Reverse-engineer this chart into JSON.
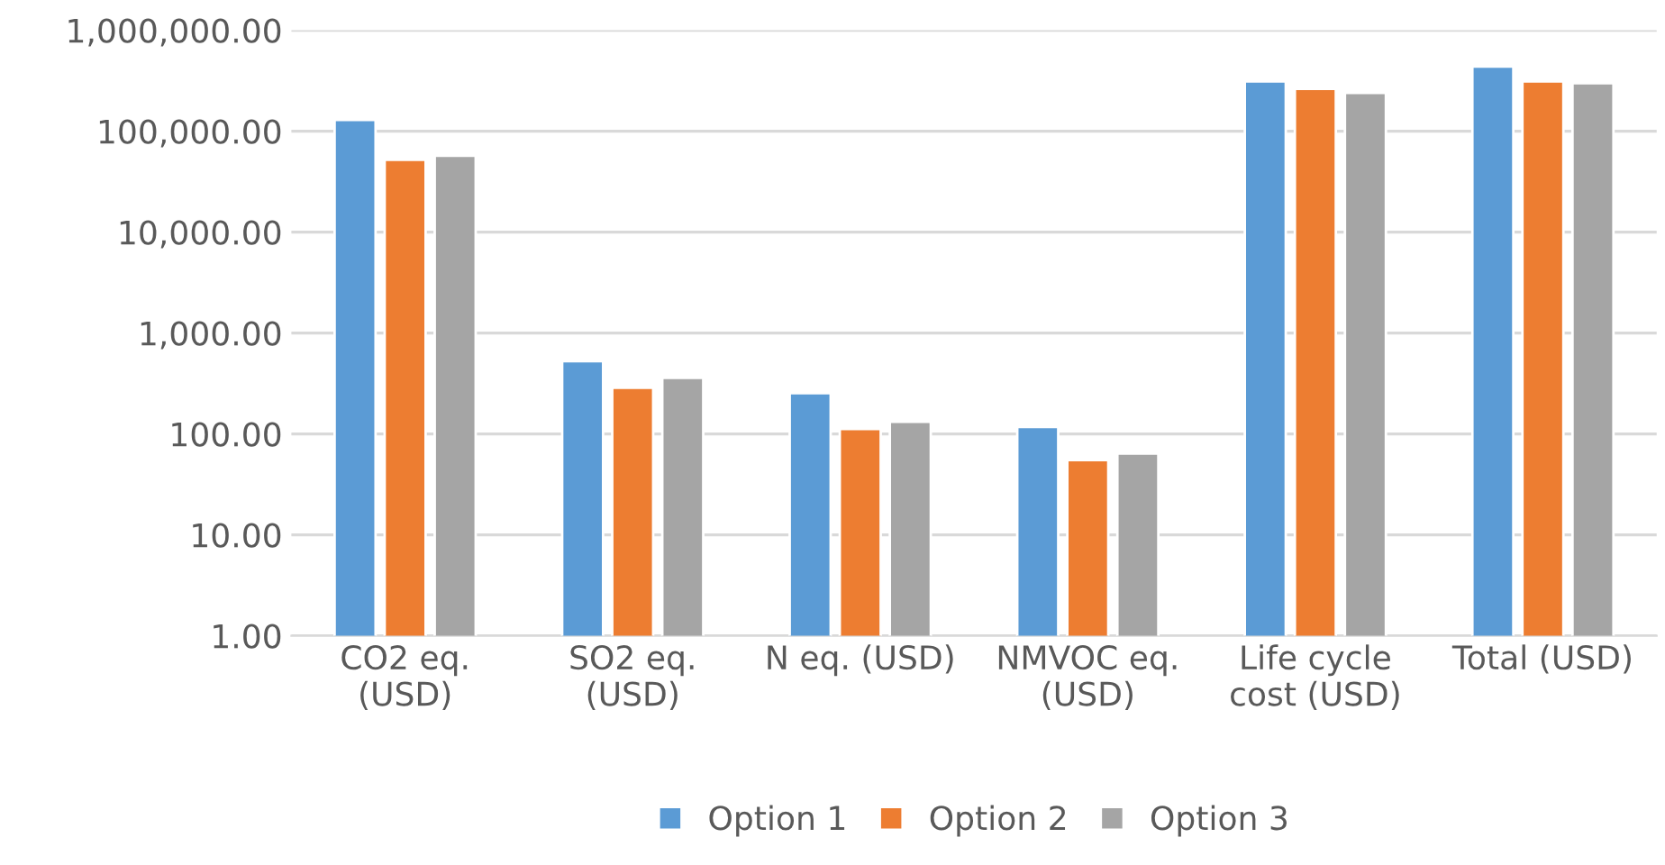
{
  "chart_data": {
    "type": "bar",
    "categories": [
      "CO2 eq.\n(USD)",
      "SO2 eq.\n(USD)",
      "N eq. (USD)",
      "NMVOC eq.\n(USD)",
      "Life cycle\ncost (USD)",
      "Total (USD)"
    ],
    "series": [
      {
        "name": "Option 1",
        "color": "#5b9bd5",
        "values": [
          129000,
          525,
          253,
          117,
          312000,
          437000
        ]
      },
      {
        "name": "Option 2",
        "color": "#ed7d31",
        "values": [
          52000,
          287,
          112,
          55,
          263000,
          312000
        ]
      },
      {
        "name": "Option 3",
        "color": "#a5a5a5",
        "values": [
          57000,
          359,
          132,
          64,
          239000,
          299000
        ]
      }
    ],
    "log": true,
    "ylim": [
      1,
      1000000
    ],
    "yticks": [
      {
        "value": 1,
        "label": "1.00"
      },
      {
        "value": 10,
        "label": "10.00"
      },
      {
        "value": 100,
        "label": "100.00"
      },
      {
        "value": 1000,
        "label": "1,000.00"
      },
      {
        "value": 10000,
        "label": "10,000.00"
      },
      {
        "value": 100000,
        "label": "100,000.00"
      },
      {
        "value": 1000000,
        "label": "1,000,000.00"
      }
    ],
    "grid": "y",
    "legend": "bottom"
  }
}
